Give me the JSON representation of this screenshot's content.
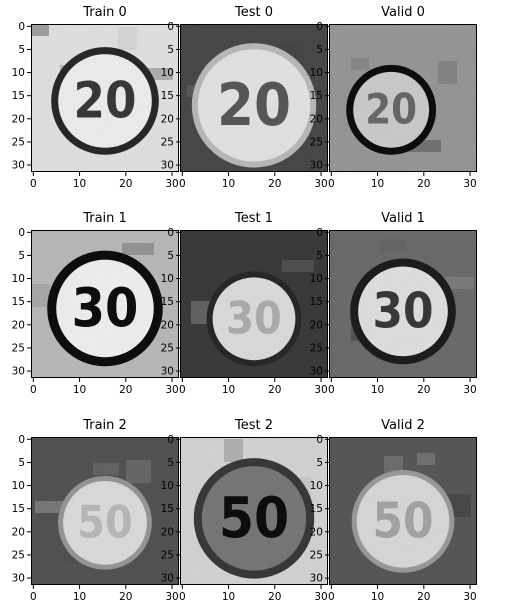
{
  "figure": {
    "panels": [
      {
        "title": "Train 0",
        "sign": "20",
        "style": "train-light",
        "row": 0,
        "col": 0
      },
      {
        "title": "Test 0",
        "sign": "20",
        "style": "test-noisy",
        "row": 0,
        "col": 1
      },
      {
        "title": "Valid 0",
        "sign": "20",
        "style": "valid-partial",
        "row": 0,
        "col": 2
      },
      {
        "title": "Train 1",
        "sign": "30",
        "style": "train-bold",
        "row": 1,
        "col": 0
      },
      {
        "title": "Test 1",
        "sign": "30",
        "style": "test-faded",
        "row": 1,
        "col": 1
      },
      {
        "title": "Valid 1",
        "sign": "30",
        "style": "valid-mid",
        "row": 1,
        "col": 2
      },
      {
        "title": "Train 2",
        "sign": "50",
        "style": "train-faded",
        "row": 2,
        "col": 0
      },
      {
        "title": "Test 2",
        "sign": "50",
        "style": "test-dark",
        "row": 2,
        "col": 1
      },
      {
        "title": "Valid 2",
        "sign": "50",
        "style": "valid-light",
        "row": 2,
        "col": 2
      }
    ],
    "x_ticks": [
      "0",
      "10",
      "20",
      "30"
    ],
    "y_ticks": [
      "0",
      "5",
      "10",
      "15",
      "20",
      "25",
      "30"
    ],
    "image_extent": [
      0,
      31
    ],
    "colors": {
      "background": "#ffffff",
      "frame": "#000000"
    }
  }
}
